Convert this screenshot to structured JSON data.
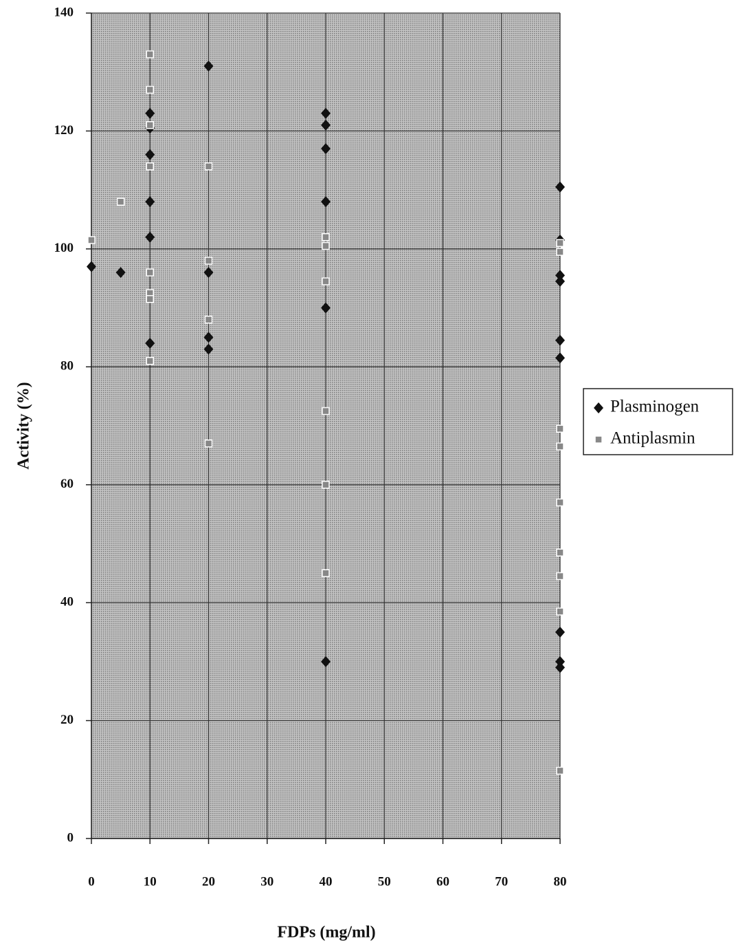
{
  "chart_data": {
    "type": "scatter",
    "x_label": "FDPs (mg/ml)",
    "y_label": "Activity (%)",
    "xlim": [
      0,
      80
    ],
    "ylim": [
      0,
      140
    ],
    "xticks": [
      0,
      10,
      20,
      30,
      40,
      50,
      60,
      70,
      80
    ],
    "yticks": [
      0,
      20,
      40,
      60,
      80,
      100,
      120,
      140
    ],
    "grid": true,
    "legend": "right",
    "series": [
      {
        "name": "Plasminogen",
        "color": "#111111",
        "marker": "diamond",
        "x": [
          0,
          5,
          10,
          10,
          10,
          10,
          10,
          10,
          20,
          20,
          20,
          20,
          40,
          40,
          40,
          40,
          40,
          40,
          80,
          80,
          80,
          80,
          80,
          80,
          80,
          80,
          80
        ],
        "values": [
          97,
          96,
          123,
          120.5,
          116,
          108,
          102,
          84,
          131,
          96,
          85,
          83,
          123,
          121,
          117,
          108,
          90,
          30,
          110.5,
          101.5,
          95.5,
          94.5,
          84.5,
          81.5,
          35,
          30,
          29
        ]
      },
      {
        "name": "Antiplasmin",
        "color": "#888888",
        "marker": "square",
        "x": [
          0,
          5,
          10,
          10,
          10,
          10,
          10,
          10,
          10,
          10,
          20,
          20,
          20,
          20,
          40,
          40,
          40,
          40,
          40,
          40,
          80,
          80,
          80,
          80,
          80,
          80,
          80,
          80,
          80
        ],
        "values": [
          101.5,
          108,
          133,
          127,
          121,
          114,
          96,
          92.5,
          91.5,
          81,
          114,
          98,
          88,
          67,
          102,
          100.5,
          94.5,
          72.5,
          60,
          45,
          101,
          99.5,
          69.5,
          66.5,
          57,
          48.5,
          44.5,
          38.5,
          11.5
        ]
      }
    ]
  }
}
